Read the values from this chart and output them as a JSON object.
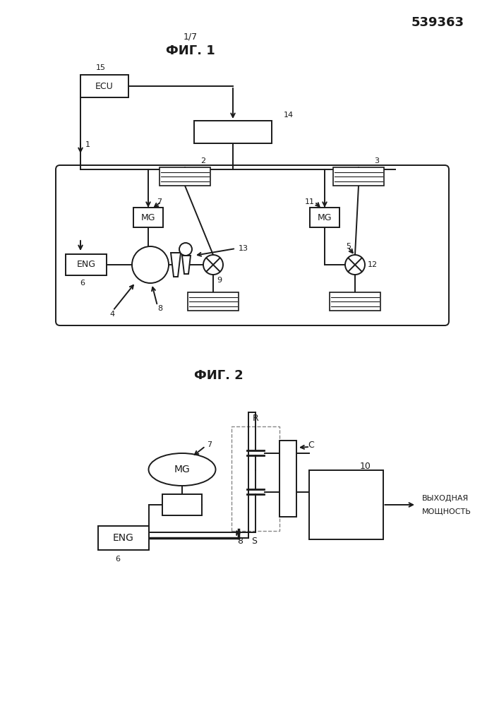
{
  "bg_color": "#ffffff",
  "line_color": "#1a1a1a",
  "fig1_title": "ФИГ. 1",
  "fig2_title": "ФИГ. 2",
  "page_label": "1/7",
  "patent_number": "539363"
}
